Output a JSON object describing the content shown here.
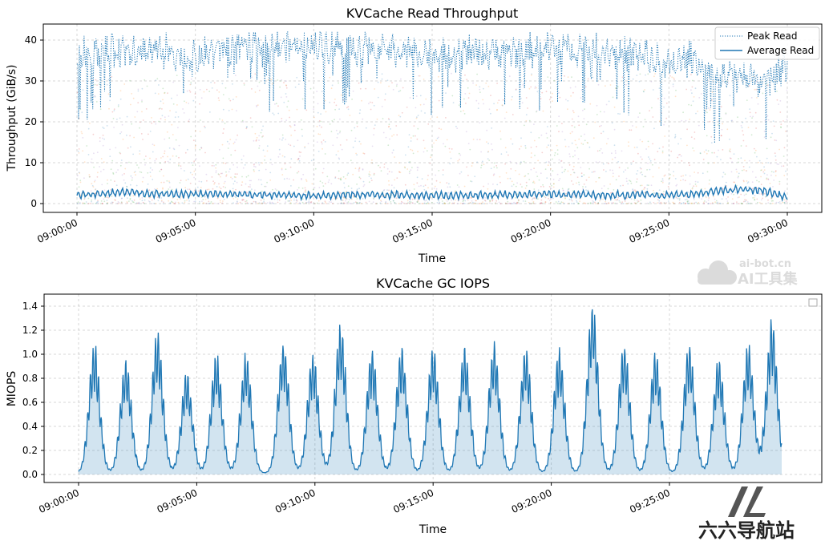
{
  "chart_data": [
    {
      "type": "line",
      "title": "KVCache Read Throughput",
      "xlabel": "Time",
      "ylabel": "Throughput (GiB/s)",
      "xlim": [
        "09:00:00",
        "09:30:00"
      ],
      "ylim": [
        0,
        44
      ],
      "x_ticks": [
        "09:00:00",
        "09:05:00",
        "09:10:00",
        "09:15:00",
        "09:20:00",
        "09:25:00",
        "09:30:00"
      ],
      "y_ticks": [
        0,
        10,
        20,
        30,
        40
      ],
      "grid": true,
      "legend": "top-right",
      "series": [
        {
          "name": "Peak Read",
          "style": "dotted",
          "color": "#1f77b4",
          "x": [
            "09:00:00",
            "09:02:00",
            "09:04:00",
            "09:05:00",
            "09:06:00",
            "09:08:00",
            "09:10:00",
            "09:12:00",
            "09:14:00",
            "09:16:00",
            "09:18:00",
            "09:20:00",
            "09:22:00",
            "09:24:00",
            "09:25:00",
            "09:26:00",
            "09:27:00",
            "09:28:00",
            "09:29:00",
            "09:30:00"
          ],
          "values": [
            36,
            38,
            37,
            35,
            38,
            38,
            39,
            38,
            37,
            37,
            37,
            38,
            38,
            36,
            33,
            36,
            30,
            32,
            30,
            34
          ]
        },
        {
          "name": "Average Read",
          "style": "solid",
          "color": "#1f77b4",
          "x": [
            "09:00:00",
            "09:02:00",
            "09:04:00",
            "09:05:00",
            "09:06:00",
            "09:08:00",
            "09:10:00",
            "09:12:00",
            "09:14:00",
            "09:16:00",
            "09:18:00",
            "09:20:00",
            "09:22:00",
            "09:24:00",
            "09:25:00",
            "09:26:00",
            "09:27:00",
            "09:28:00",
            "09:29:00",
            "09:30:00"
          ],
          "values": [
            2.0,
            2.8,
            2.2,
            2.4,
            2.3,
            2.1,
            2.0,
            2.2,
            2.1,
            2.0,
            2.2,
            2.3,
            2.1,
            2.2,
            2.0,
            2.3,
            3.0,
            3.5,
            3.2,
            1.5
          ]
        }
      ]
    },
    {
      "type": "area",
      "title": "KVCache GC IOPS",
      "xlabel": "Time",
      "ylabel": "MIOPS",
      "xlim": [
        "08:59:00",
        "09:30:00"
      ],
      "ylim": [
        -0.07,
        1.5
      ],
      "x_ticks": [
        "09:00:00",
        "09:05:00",
        "09:10:00",
        "09:15:00",
        "09:20:00",
        "09:25:00"
      ],
      "y_ticks": [
        0.0,
        0.2,
        0.4,
        0.6,
        0.8,
        1.0,
        1.2,
        1.4
      ],
      "grid": true,
      "legend": "top-right",
      "series": [
        {
          "color": "#1f77b4",
          "peak_times": [
            "09:00:40",
            "09:02:00",
            "09:03:20",
            "09:04:35",
            "09:05:50",
            "09:07:05",
            "09:08:40",
            "09:09:55",
            "09:11:05",
            "09:12:25",
            "09:13:40",
            "09:15:00",
            "09:16:20",
            "09:17:35",
            "09:18:55",
            "09:20:20",
            "09:21:45",
            "09:23:05",
            "09:24:25",
            "09:25:50",
            "09:27:05",
            "09:28:20",
            "09:29:20"
          ],
          "peak_values": [
            1.07,
            0.95,
            1.18,
            0.84,
            1.0,
            0.99,
            1.11,
            1.0,
            1.24,
            1.02,
            1.05,
            1.06,
            1.05,
            1.08,
            1.05,
            1.02,
            1.43,
            1.08,
            1.0,
            1.08,
            0.95,
            1.08,
            1.28
          ],
          "baseline": 0.01
        }
      ]
    }
  ],
  "watermarks": {
    "top_text_1": "ai-bot.cn",
    "top_text_2": "AI工具集",
    "bottom_text": "六六导航站"
  }
}
